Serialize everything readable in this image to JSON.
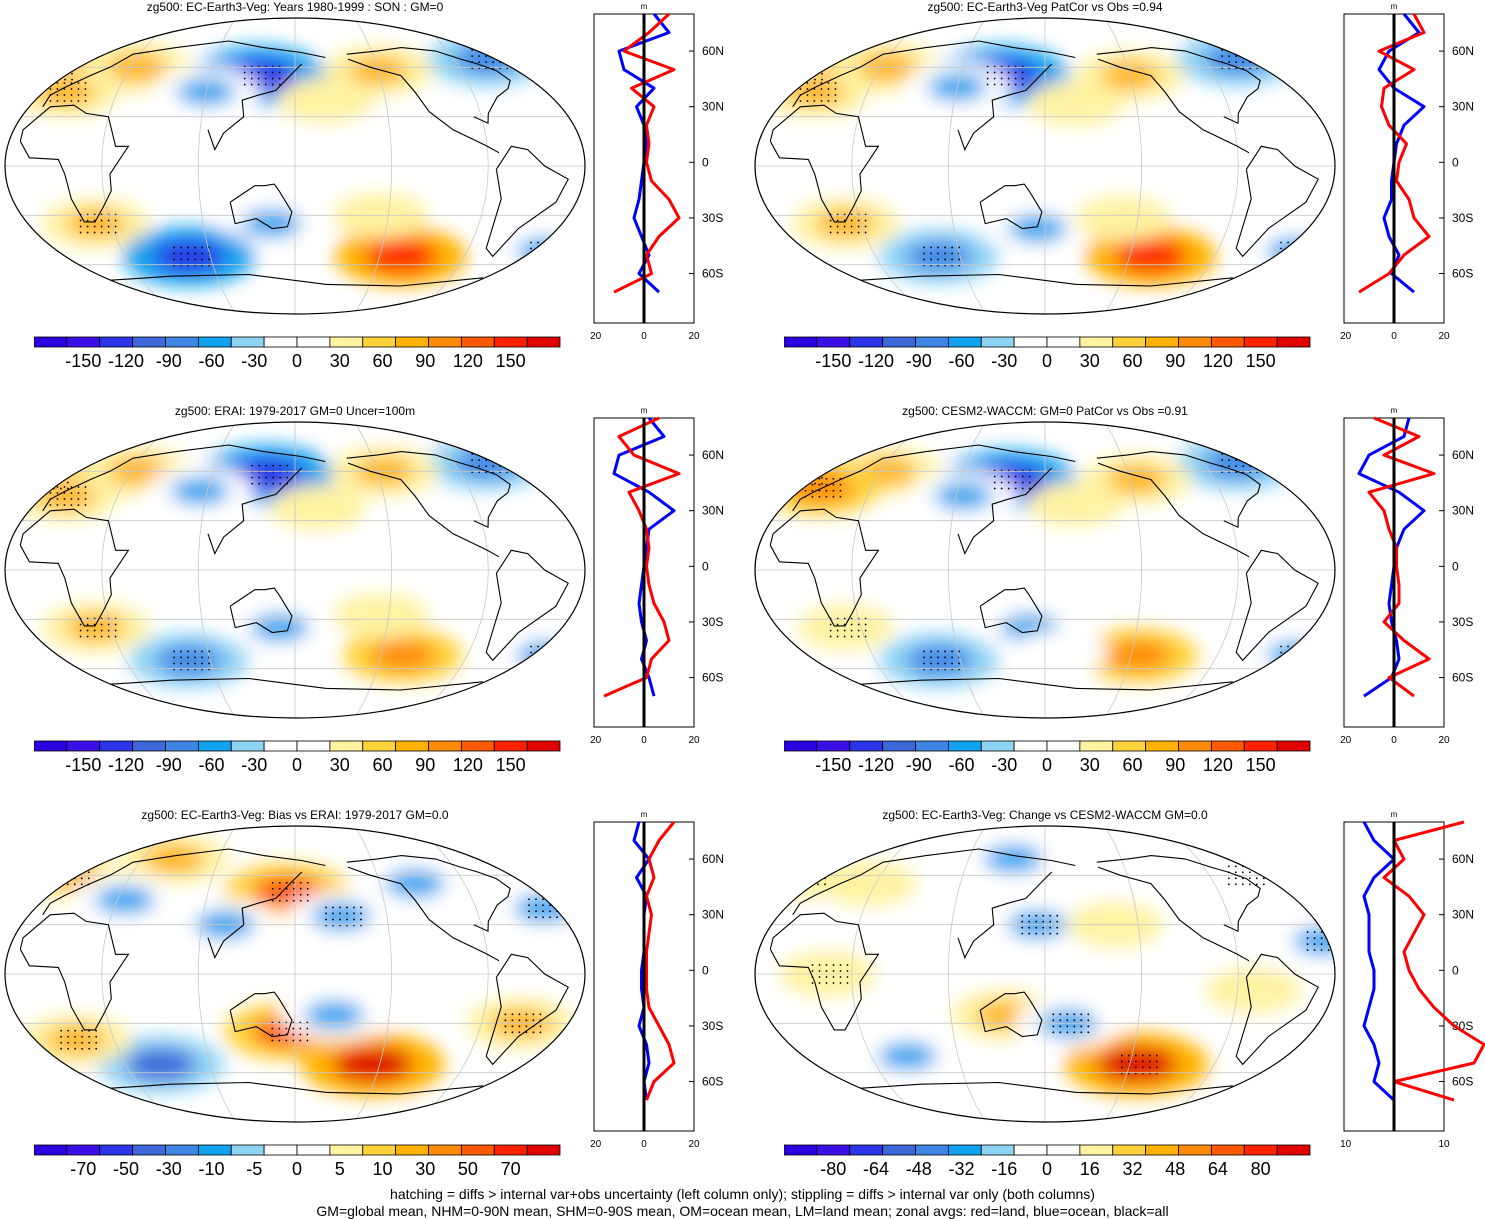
{
  "chart_data": [
    {
      "type": "heatmap",
      "title": "zg500: EC-Earth3-Veg: Years 1980-1999 : SON : GM=0",
      "colorbar_ticks": [
        "-150",
        "-120",
        "-90",
        "-60",
        "-30",
        "0",
        "30",
        "60",
        "90",
        "120",
        "150"
      ],
      "colorbar_range": [
        -150,
        150
      ],
      "features": [
        {
          "lon": -20,
          "lat": 58,
          "v": 90
        },
        {
          "lon": 40,
          "lat": 60,
          "v": 60
        },
        {
          "lon": 130,
          "lat": 55,
          "v": -120
        },
        {
          "lon": 95,
          "lat": 45,
          "v": -60
        },
        {
          "lon": -60,
          "lat": 65,
          "v": -90
        },
        {
          "lon": -145,
          "lat": 58,
          "v": 60
        },
        {
          "lon": 0,
          "lat": 45,
          "v": 60
        },
        {
          "lon": 175,
          "lat": 40,
          "v": 30
        },
        {
          "lon": 25,
          "lat": -35,
          "v": 60
        },
        {
          "lon": 140,
          "lat": -35,
          "v": -60
        },
        {
          "lon": 80,
          "lat": -55,
          "v": -120
        },
        {
          "lon": -130,
          "lat": -55,
          "v": 120
        },
        {
          "lon": -30,
          "lat": -52,
          "v": -60
        },
        {
          "lon": -150,
          "lat": -30,
          "v": 30
        }
      ],
      "profile": {
        "xlim": [
          -20,
          20
        ],
        "xticks": [
          "-20",
          "0",
          "20"
        ],
        "yticks": [
          "60N",
          "30N",
          "0",
          "30S",
          "60S"
        ],
        "unit": "m",
        "lat": [
          80,
          70,
          60,
          50,
          40,
          30,
          20,
          10,
          0,
          -10,
          -20,
          -30,
          -40,
          -50,
          -60,
          -70
        ],
        "land": [
          10,
          2,
          -8,
          12,
          -5,
          4,
          1,
          2,
          1,
          3,
          10,
          14,
          6,
          1,
          3,
          -12
        ],
        "ocean": [
          4,
          10,
          -10,
          -8,
          4,
          -3,
          0,
          1,
          0,
          -1,
          -2,
          -4,
          -1,
          2,
          -2,
          6
        ]
      }
    },
    {
      "type": "heatmap",
      "title": "zg500: EC-Earth3-Veg PatCor vs Obs =0.94",
      "colorbar_ticks": [
        "-150",
        "-120",
        "-90",
        "-60",
        "-30",
        "0",
        "30",
        "60",
        "90",
        "120",
        "150"
      ],
      "colorbar_range": [
        -150,
        150
      ],
      "features": [
        {
          "lon": -20,
          "lat": 58,
          "v": 90
        },
        {
          "lon": 40,
          "lat": 60,
          "v": 60
        },
        {
          "lon": 125,
          "lat": 55,
          "v": -120
        },
        {
          "lon": 95,
          "lat": 48,
          "v": -60
        },
        {
          "lon": -60,
          "lat": 65,
          "v": -90
        },
        {
          "lon": -145,
          "lat": 55,
          "v": 60
        },
        {
          "lon": 0,
          "lat": 45,
          "v": 60
        },
        {
          "lon": 175,
          "lat": 38,
          "v": 30
        },
        {
          "lon": 25,
          "lat": -35,
          "v": 60
        },
        {
          "lon": 150,
          "lat": -38,
          "v": -60
        },
        {
          "lon": 80,
          "lat": -55,
          "v": -90
        },
        {
          "lon": -130,
          "lat": -55,
          "v": 120
        },
        {
          "lon": -30,
          "lat": -52,
          "v": -60
        },
        {
          "lon": -155,
          "lat": -32,
          "v": 30
        }
      ],
      "profile": {
        "xlim": [
          -20,
          20
        ],
        "xticks": [
          "-20",
          "0",
          "20"
        ],
        "yticks": [
          "60N",
          "30N",
          "0",
          "30S",
          "60S"
        ],
        "unit": "m",
        "lat": [
          80,
          70,
          60,
          50,
          40,
          30,
          20,
          10,
          0,
          -10,
          -20,
          -30,
          -40,
          -50,
          -60,
          -70
        ],
        "land": [
          8,
          12,
          -6,
          8,
          -4,
          -5,
          -2,
          5,
          2,
          1,
          6,
          8,
          14,
          4,
          -2,
          -14
        ],
        "ocean": [
          4,
          10,
          -2,
          -6,
          0,
          12,
          4,
          1,
          0,
          -1,
          -1,
          -4,
          -2,
          2,
          -1,
          8
        ]
      }
    },
    {
      "type": "heatmap",
      "title": "zg500: ERAI: 1979-2017 GM=0 Uncer=100m",
      "colorbar_ticks": [
        "-150",
        "-120",
        "-90",
        "-60",
        "-30",
        "0",
        "30",
        "60",
        "90",
        "120",
        "150"
      ],
      "colorbar_range": [
        -150,
        150
      ],
      "features": [
        {
          "lon": -20,
          "lat": 55,
          "v": 90
        },
        {
          "lon": 40,
          "lat": 60,
          "v": 60
        },
        {
          "lon": 135,
          "lat": 58,
          "v": -120
        },
        {
          "lon": 90,
          "lat": 48,
          "v": -60
        },
        {
          "lon": -60,
          "lat": 65,
          "v": -90
        },
        {
          "lon": -140,
          "lat": 60,
          "v": 60
        },
        {
          "lon": 0,
          "lat": 45,
          "v": 60
        },
        {
          "lon": 170,
          "lat": 38,
          "v": 30
        },
        {
          "lon": 25,
          "lat": -35,
          "v": 60
        },
        {
          "lon": 145,
          "lat": -35,
          "v": -60
        },
        {
          "lon": 80,
          "lat": -55,
          "v": -90
        },
        {
          "lon": -130,
          "lat": -52,
          "v": 90
        },
        {
          "lon": -30,
          "lat": -52,
          "v": -60
        },
        {
          "lon": -150,
          "lat": -28,
          "v": 30
        }
      ],
      "profile": {
        "xlim": [
          -20,
          20
        ],
        "xticks": [
          "-20",
          "0",
          "20"
        ],
        "yticks": [
          "60N",
          "30N",
          "0",
          "30S",
          "60S"
        ],
        "unit": "m",
        "lat": [
          80,
          70,
          60,
          50,
          40,
          30,
          20,
          10,
          0,
          -10,
          -20,
          -30,
          -40,
          -50,
          -60,
          -70
        ],
        "land": [
          6,
          -10,
          -4,
          14,
          -6,
          -2,
          1,
          2,
          1,
          2,
          4,
          8,
          10,
          3,
          1,
          -16
        ],
        "ocean": [
          2,
          8,
          -10,
          -12,
          2,
          12,
          2,
          1,
          0,
          -1,
          -2,
          -1,
          1,
          -1,
          2,
          4
        ]
      }
    },
    {
      "type": "heatmap",
      "title": "zg500: CESM2-WACCM: GM=0 PatCor vs Obs =0.91",
      "colorbar_ticks": [
        "-150",
        "-120",
        "-90",
        "-60",
        "-30",
        "0",
        "30",
        "60",
        "90",
        "120",
        "150"
      ],
      "colorbar_range": [
        -150,
        150
      ],
      "features": [
        {
          "lon": -20,
          "lat": 58,
          "v": 90
        },
        {
          "lon": 40,
          "lat": 60,
          "v": 60
        },
        {
          "lon": 130,
          "lat": 55,
          "v": -120
        },
        {
          "lon": 100,
          "lat": 45,
          "v": -60
        },
        {
          "lon": -60,
          "lat": 65,
          "v": -90
        },
        {
          "lon": -140,
          "lat": 55,
          "v": 60
        },
        {
          "lon": 0,
          "lat": 50,
          "v": 90
        },
        {
          "lon": 175,
          "lat": 40,
          "v": 30
        },
        {
          "lon": 25,
          "lat": -35,
          "v": 30
        },
        {
          "lon": 145,
          "lat": -35,
          "v": -60
        },
        {
          "lon": 80,
          "lat": -55,
          "v": -90
        },
        {
          "lon": -140,
          "lat": -52,
          "v": 90
        },
        {
          "lon": -30,
          "lat": -52,
          "v": -60
        },
        {
          "lon": 165,
          "lat": -50,
          "v": -30
        }
      ],
      "profile": {
        "xlim": [
          -20,
          20
        ],
        "xticks": [
          "-20",
          "0",
          "20"
        ],
        "yticks": [
          "60N",
          "30N",
          "0",
          "30S",
          "60S"
        ],
        "unit": "m",
        "lat": [
          80,
          70,
          60,
          50,
          40,
          30,
          20,
          10,
          0,
          -10,
          -20,
          -30,
          -40,
          -50,
          -60,
          -70
        ],
        "land": [
          -8,
          10,
          -4,
          16,
          -10,
          -4,
          -2,
          1,
          1,
          2,
          2,
          -4,
          4,
          14,
          -2,
          8
        ],
        "ocean": [
          6,
          4,
          -10,
          -14,
          2,
          12,
          4,
          1,
          0,
          -1,
          -2,
          -1,
          1,
          2,
          -1,
          -12
        ]
      }
    },
    {
      "type": "heatmap",
      "title": "zg500: EC-Earth3-Veg: Bias vs ERAI: 1979-2017  GM=0.0",
      "colorbar_ticks": [
        "-70",
        "-50",
        "-30",
        "-10",
        "-5",
        "0",
        "5",
        "10",
        "30",
        "50",
        "70"
      ],
      "colorbar_range": [
        -70,
        70
      ],
      "features": [
        {
          "lon": -10,
          "lat": 60,
          "v": 30
        },
        {
          "lon": 60,
          "lat": 70,
          "v": 30
        },
        {
          "lon": 150,
          "lat": 50,
          "v": 50
        },
        {
          "lon": 110,
          "lat": 30,
          "v": -30
        },
        {
          "lon": -175,
          "lat": 35,
          "v": -30
        },
        {
          "lon": -120,
          "lat": 55,
          "v": -30
        },
        {
          "lon": -40,
          "lat": 40,
          "v": -30
        },
        {
          "lon": 40,
          "lat": 45,
          "v": -30
        },
        {
          "lon": 150,
          "lat": -35,
          "v": 50
        },
        {
          "lon": -150,
          "lat": -55,
          "v": 70
        },
        {
          "lon": -60,
          "lat": -30,
          "v": 30
        },
        {
          "lon": 60,
          "lat": -55,
          "v": -50
        },
        {
          "lon": 10,
          "lat": -40,
          "v": 30
        },
        {
          "lon": 180,
          "lat": -25,
          "v": -30
        }
      ],
      "profile": {
        "xlim": [
          -20,
          20
        ],
        "xticks": [
          "-20",
          "0",
          "20"
        ],
        "yticks": [
          "60N",
          "30N",
          "0",
          "30S",
          "60S"
        ],
        "unit": "m",
        "lat": [
          80,
          70,
          60,
          50,
          40,
          30,
          20,
          10,
          0,
          -10,
          -20,
          -30,
          -40,
          -50,
          -60,
          -70
        ],
        "land": [
          12,
          6,
          2,
          4,
          1,
          3,
          2,
          1,
          1,
          1,
          2,
          6,
          10,
          12,
          4,
          1
        ],
        "ocean": [
          -2,
          -4,
          2,
          -3,
          1,
          0,
          0,
          0,
          -1,
          -1,
          0,
          -2,
          1,
          2,
          0,
          1
        ]
      }
    },
    {
      "type": "heatmap",
      "title": "zg500: EC-Earth3-Veg: Change vs CESM2-WACCM GM=0.0",
      "colorbar_ticks": [
        "-80",
        "-64",
        "-48",
        "-32",
        "-16",
        "0",
        "16",
        "32",
        "48",
        "64",
        "80"
      ],
      "colorbar_range": [
        -80,
        80
      ],
      "features": [
        {
          "lon": -20,
          "lat": 60,
          "v": 16
        },
        {
          "lon": 130,
          "lat": 70,
          "v": -32
        },
        {
          "lon": 150,
          "lat": 30,
          "v": -32
        },
        {
          "lon": 30,
          "lat": 55,
          "v": 16
        },
        {
          "lon": -60,
          "lat": 60,
          "v": -16
        },
        {
          "lon": -160,
          "lat": 30,
          "v": 16
        },
        {
          "lon": -30,
          "lat": 20,
          "v": -32
        },
        {
          "lon": 130,
          "lat": -25,
          "v": 32
        },
        {
          "lon": -140,
          "lat": -55,
          "v": 80
        },
        {
          "lon": 60,
          "lat": -50,
          "v": -32
        },
        {
          "lon": 170,
          "lat": -30,
          "v": -32
        },
        {
          "lon": -75,
          "lat": -10,
          "v": 16
        },
        {
          "lon": 20,
          "lat": 0,
          "v": 16
        }
      ],
      "profile": {
        "xlim": [
          -10,
          10
        ],
        "xticks": [
          "-10",
          "10"
        ],
        "yticks": [
          "60N",
          "30N",
          "0",
          "30S",
          "60S"
        ],
        "unit": "m",
        "lat": [
          80,
          70,
          60,
          50,
          40,
          30,
          20,
          10,
          0,
          -10,
          -20,
          -30,
          -40,
          -50,
          -60,
          -70
        ],
        "land": [
          14,
          0,
          2,
          -2,
          3,
          6,
          4,
          2,
          3,
          5,
          8,
          12,
          18,
          16,
          0,
          12
        ],
        "ocean": [
          -6,
          -4,
          0,
          -4,
          -6,
          -5,
          -5,
          -5,
          -4,
          -4,
          -5,
          -6,
          -4,
          -3,
          -4,
          0
        ]
      }
    }
  ],
  "footer": {
    "line1": "hatching = diffs > internal var+obs uncertainty (left column only); stippling = diffs > internal var only (both columns)",
    "line2": "GM=global mean, NHM=0-90N mean, SHM=0-90S mean, OM=ocean mean, LM=land mean; zonal avgs: red=land, blue=ocean, black=all"
  },
  "colors": {
    "land_line": "#ff0000",
    "ocean_line": "#0000ff",
    "all_line": "#000000",
    "palette": [
      "#3b0fe8",
      "#2a36e8",
      "#3c67d8",
      "#3d86e6",
      "#0fa3ef",
      "#8fd3f5",
      "#ffffff",
      "#ffffff",
      "#fff2a1",
      "#ffd23a",
      "#ffb300",
      "#ff8c00",
      "#ff5a00",
      "#ff2200",
      "#e00000"
    ]
  }
}
